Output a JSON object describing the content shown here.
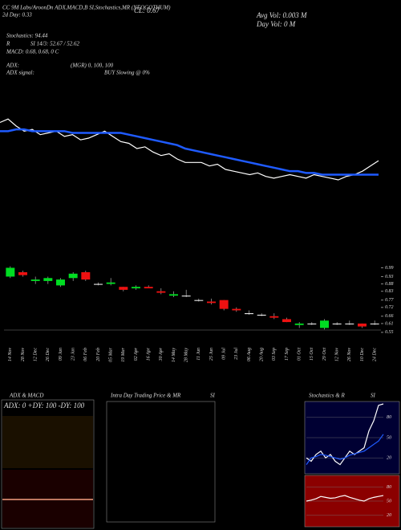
{
  "header": {
    "ticker_line": "CC 9M Labs/AroonDn ADX,MACD,B  SI,Stochastics,MR  (NEOGOTHUM)",
    "day_line": "2d Day: 0.33",
    "close": "CL: 0.67",
    "avg_vol": "Avg Vol: 0.003 M",
    "day_vol": "Day Vol: 0  M",
    "stochastics": "Stochastics: 94.44",
    "r": "R",
    "si": "SI 14/3: 52.67 / 52.62",
    "macd": "MACD: 0.68, 0.68, 0  C",
    "adx": "ADX:",
    "mgr": "(MGR) 0, 100, 100",
    "adx_signal": "ADX  signal:",
    "signal": "BUY Slowing @ 0%"
  },
  "panels": {
    "adx": {
      "title": "ADX  & MACD",
      "subtitle": "ADX: 0  +DY: 100  -DY: 100"
    },
    "intraday": {
      "title": "Intra Day Trading Price  & MR",
      "si": "SI"
    },
    "stoch": {
      "title": "Stochastics & R",
      "si": "SI"
    }
  },
  "chart_data": [
    {
      "type": "line",
      "ylim": [
        0.5,
        1.1
      ],
      "series": [
        {
          "name": "Price",
          "color": "#ffffff",
          "values": [
            0.95,
            0.97,
            0.93,
            0.9,
            0.91,
            0.88,
            0.89,
            0.9,
            0.87,
            0.88,
            0.85,
            0.86,
            0.88,
            0.9,
            0.87,
            0.84,
            0.83,
            0.8,
            0.81,
            0.78,
            0.76,
            0.77,
            0.74,
            0.72,
            0.72,
            0.72,
            0.7,
            0.71,
            0.68,
            0.67,
            0.66,
            0.65,
            0.66,
            0.64,
            0.63,
            0.64,
            0.65,
            0.64,
            0.63,
            0.65,
            0.64,
            0.63,
            0.62,
            0.64,
            0.65,
            0.67,
            0.7,
            0.73
          ]
        },
        {
          "name": "Average",
          "color": "#1f5bff",
          "values": [
            0.9,
            0.9,
            0.91,
            0.91,
            0.9,
            0.9,
            0.9,
            0.9,
            0.9,
            0.89,
            0.89,
            0.89,
            0.89,
            0.89,
            0.89,
            0.89,
            0.88,
            0.87,
            0.86,
            0.85,
            0.84,
            0.83,
            0.82,
            0.8,
            0.79,
            0.78,
            0.77,
            0.76,
            0.75,
            0.74,
            0.73,
            0.72,
            0.71,
            0.7,
            0.69,
            0.68,
            0.67,
            0.67,
            0.66,
            0.66,
            0.65,
            0.65,
            0.65,
            0.65,
            0.65,
            0.65,
            0.65,
            0.65
          ]
        }
      ]
    },
    {
      "type": "candlestick",
      "ylim": [
        0.5,
        1.02
      ],
      "yticks": [
        0.99,
        0.93,
        0.88,
        0.83,
        0.77,
        0.72,
        0.66,
        0.61,
        0.55
      ],
      "up_color": "#00dd22",
      "down_color": "#ee1111",
      "flat_color": "#ffffff",
      "categories": [
        "14 Nov",
        "28 Nov",
        "12 Dec",
        "26 Dec",
        "09 Jan",
        "23 Jan",
        "06 Feb",
        "20 Feb",
        "05 Mar",
        "19 Mar",
        "02 Apr",
        "16 Apr",
        "30 Apr",
        "14 May",
        "28 May",
        "11 Jun",
        "25 Jun",
        "09 Jul",
        "23 Jul",
        "06 Aug",
        "20 Aug",
        "03 Sep",
        "17 Sep",
        "01 Oct",
        "15 Oct",
        "29 Oct",
        "12 Nov",
        "26 Nov",
        "10 Dec",
        "24 Dec"
      ],
      "open": [
        0.93,
        0.96,
        0.9,
        0.9,
        0.87,
        0.92,
        0.96,
        0.88,
        0.88,
        0.86,
        0.85,
        0.86,
        0.83,
        0.8,
        0.8,
        0.77,
        0.76,
        0.77,
        0.71,
        0.68,
        0.67,
        0.66,
        0.64,
        0.6,
        0.61,
        0.58,
        0.61,
        0.61,
        0.61,
        0.61
      ],
      "high": [
        1.0,
        0.97,
        0.93,
        0.93,
        0.92,
        0.96,
        0.97,
        0.89,
        0.92,
        0.86,
        0.87,
        0.87,
        0.85,
        0.83,
        0.84,
        0.78,
        0.78,
        0.77,
        0.72,
        0.7,
        0.68,
        0.68,
        0.65,
        0.62,
        0.62,
        0.64,
        0.62,
        0.63,
        0.61,
        0.63
      ],
      "low": [
        0.92,
        0.93,
        0.88,
        0.88,
        0.86,
        0.9,
        0.9,
        0.87,
        0.87,
        0.83,
        0.84,
        0.85,
        0.81,
        0.79,
        0.79,
        0.76,
        0.74,
        0.7,
        0.69,
        0.67,
        0.66,
        0.64,
        0.62,
        0.58,
        0.6,
        0.57,
        0.6,
        0.6,
        0.58,
        0.6
      ],
      "close": [
        0.99,
        0.94,
        0.91,
        0.92,
        0.91,
        0.95,
        0.91,
        0.88,
        0.89,
        0.84,
        0.86,
        0.85,
        0.82,
        0.81,
        0.8,
        0.77,
        0.75,
        0.71,
        0.7,
        0.68,
        0.67,
        0.65,
        0.62,
        0.61,
        0.61,
        0.63,
        0.61,
        0.61,
        0.59,
        0.61
      ]
    },
    {
      "type": "line",
      "ylim": [
        0,
        100
      ],
      "yticks": [
        80,
        50,
        20
      ],
      "series": [
        {
          "name": "Stochastics",
          "color": "#ffffff",
          "values": [
            20,
            15,
            25,
            30,
            20,
            25,
            15,
            10,
            20,
            30,
            25,
            30,
            35,
            60,
            75,
            98,
            100
          ]
        },
        {
          "name": "SI",
          "color": "#1f5bff",
          "values": [
            10,
            20,
            22,
            25,
            24,
            22,
            20,
            18,
            20,
            24,
            26,
            28,
            30,
            35,
            40,
            45,
            55
          ]
        }
      ]
    },
    {
      "type": "line",
      "ylim": [
        0,
        100
      ],
      "yticks": [
        80,
        50,
        20
      ],
      "series": [
        {
          "name": "MR",
          "color": "#ffffff",
          "values": [
            50,
            52,
            55,
            60,
            58,
            56,
            57,
            60,
            62,
            58,
            55,
            52,
            50,
            55,
            58,
            60,
            62
          ]
        }
      ]
    }
  ]
}
